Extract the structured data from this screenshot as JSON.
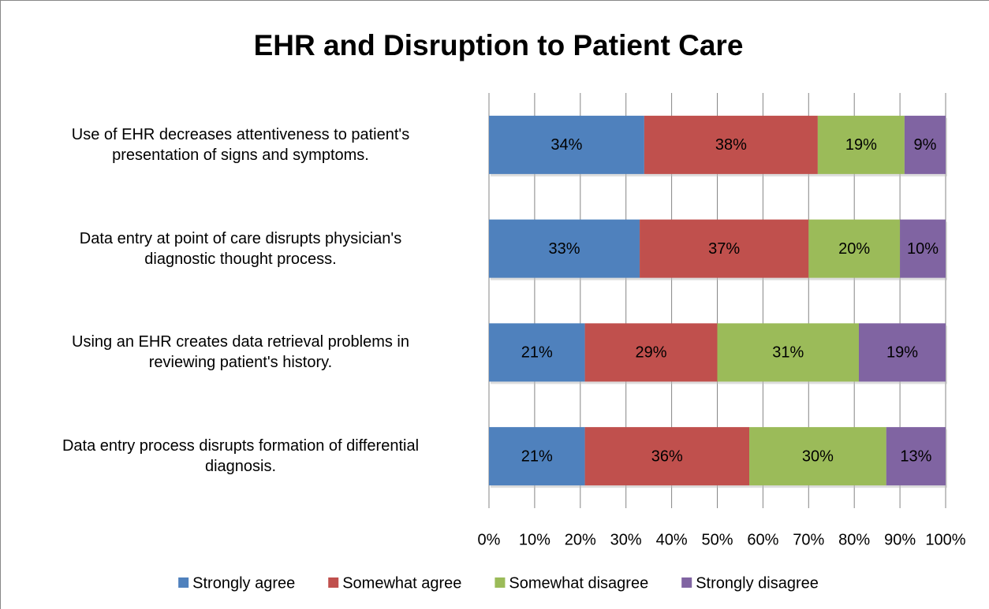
{
  "chart_data": {
    "type": "stacked-bar",
    "orientation": "horizontal",
    "title": "EHR and Disruption to Patient Care",
    "categories": [
      "Use of EHR decreases attentiveness to patient's\npresentation of signs and symptoms.",
      "Data entry at point of care disrupts physician's\ndiagnostic thought process.",
      "Using an EHR creates data retrieval problems in\nreviewing patient's history.",
      "Data entry process disrupts formation of differential\ndiagnosis."
    ],
    "series": [
      {
        "name": "Strongly agree",
        "color": "#4f81bd",
        "values": [
          34,
          33,
          21,
          21
        ],
        "value_labels": [
          "34%",
          "33%",
          "21%",
          "21%"
        ]
      },
      {
        "name": "Somewhat agree",
        "color": "#c0504d",
        "values": [
          38,
          37,
          29,
          36
        ],
        "value_labels": [
          "38%",
          "37%",
          "29%",
          "36%"
        ]
      },
      {
        "name": "Somewhat disagree",
        "color": "#9bbb59",
        "values": [
          19,
          20,
          31,
          30
        ],
        "value_labels": [
          "19%",
          "20%",
          "31%",
          "30%"
        ]
      },
      {
        "name": "Strongly disagree",
        "color": "#8064a2",
        "values": [
          9,
          10,
          19,
          13
        ],
        "value_labels": [
          "9%",
          "10%",
          "19%",
          "13%"
        ]
      }
    ],
    "xlim": [
      0,
      100
    ],
    "xticks": [
      {
        "value": 0,
        "label": "0%"
      },
      {
        "value": 10,
        "label": "10%"
      },
      {
        "value": 20,
        "label": "20%"
      },
      {
        "value": 30,
        "label": "30%"
      },
      {
        "value": 40,
        "label": "40%"
      },
      {
        "value": 50,
        "label": "50%"
      },
      {
        "value": 60,
        "label": "60%"
      },
      {
        "value": 70,
        "label": "70%"
      },
      {
        "value": 80,
        "label": "80%"
      },
      {
        "value": 90,
        "label": "90%"
      },
      {
        "value": 100,
        "label": "100%"
      }
    ],
    "grid": true,
    "legend": "bottom"
  }
}
